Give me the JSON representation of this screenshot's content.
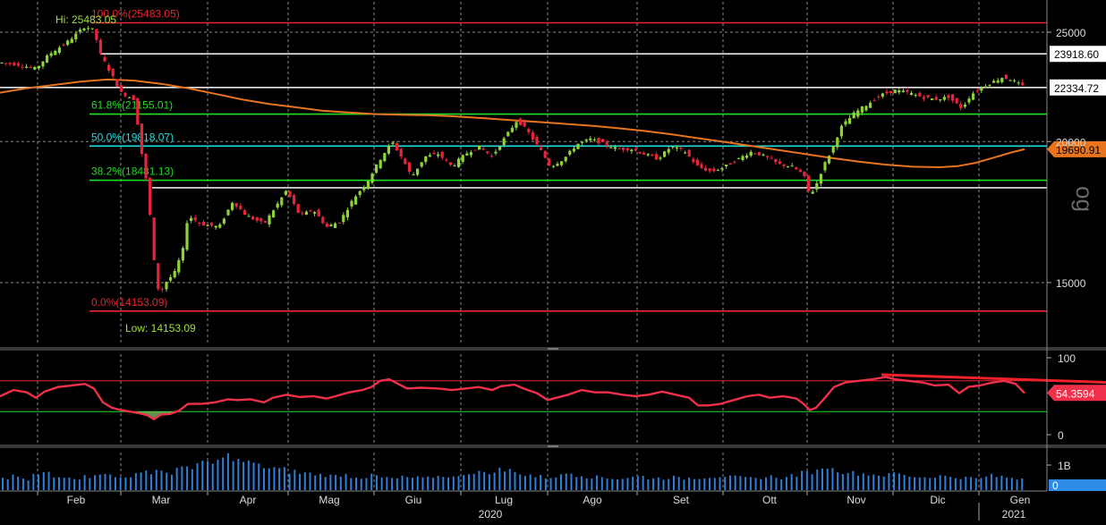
{
  "chart_data": [
    {
      "panel": "price",
      "type": "candlestick",
      "scale_note": "log",
      "scale": "log",
      "ylim": [
        13200,
        26600
      ],
      "x_months": [
        "Feb",
        "Mar",
        "Apr",
        "Mag",
        "Giu",
        "Lug",
        "Ago",
        "Set",
        "Ott",
        "Nov",
        "Dic",
        "Gen"
      ],
      "x_years": [
        "2020",
        "2021"
      ],
      "y_ticks": [
        "25000",
        "20000",
        "15000"
      ],
      "hi_label": "Hi: 25483.05",
      "low_label": "Low: 14153.09",
      "fib_levels": [
        {
          "label": "100.0%(25483.05)",
          "value": 25483.05,
          "color": "#e8242e"
        },
        {
          "label": "61.8%(21155.01)",
          "value": 21155.01,
          "color": "#22dd22"
        },
        {
          "label": "50.0%(19818.07)",
          "value": 19818.07,
          "color": "#22dddd"
        },
        {
          "label": "38.2%(18481.13)",
          "value": 18481.13,
          "color": "#22dd22"
        },
        {
          "label": "0.0%(14153.09)",
          "value": 14153.09,
          "color": "#e8242e"
        }
      ],
      "h_lines": [
        {
          "label": "23918.60",
          "value": 23918.6
        },
        {
          "label": "22334.72",
          "value": 22334.72
        },
        {
          "value": 18200
        }
      ],
      "ma_label": "19690.91",
      "ma_value": 19690.91,
      "ma_points": [
        [
          0,
          22100
        ],
        [
          30,
          22300
        ],
        [
          60,
          22450
        ],
        [
          90,
          22600
        ],
        [
          120,
          22700
        ],
        [
          150,
          22650
        ],
        [
          180,
          22500
        ],
        [
          210,
          22300
        ],
        [
          240,
          22050
        ],
        [
          270,
          21800
        ],
        [
          300,
          21600
        ],
        [
          330,
          21450
        ],
        [
          360,
          21300
        ],
        [
          390,
          21220
        ],
        [
          420,
          21150
        ],
        [
          450,
          21120
        ],
        [
          480,
          21100
        ],
        [
          510,
          21050
        ],
        [
          540,
          20980
        ],
        [
          570,
          20900
        ],
        [
          600,
          20820
        ],
        [
          630,
          20740
        ],
        [
          660,
          20660
        ],
        [
          690,
          20560
        ],
        [
          720,
          20440
        ],
        [
          750,
          20300
        ],
        [
          780,
          20140
        ],
        [
          810,
          19980
        ],
        [
          840,
          19820
        ],
        [
          870,
          19660
        ],
        [
          900,
          19500
        ],
        [
          930,
          19340
        ],
        [
          960,
          19200
        ],
        [
          990,
          19080
        ],
        [
          1020,
          19000
        ],
        [
          1050,
          18980
        ],
        [
          1070,
          19020
        ],
        [
          1090,
          19150
        ],
        [
          1110,
          19350
        ],
        [
          1130,
          19560
        ],
        [
          1145,
          19690
        ]
      ],
      "close_points": [
        [
          0,
          23500
        ],
        [
          20,
          23400
        ],
        [
          40,
          23200
        ],
        [
          55,
          23900
        ],
        [
          75,
          24500
        ],
        [
          95,
          25300
        ],
        [
          105,
          25100
        ],
        [
          112,
          23900
        ],
        [
          125,
          22900
        ],
        [
          135,
          22100
        ],
        [
          150,
          21800
        ],
        [
          158,
          19600
        ],
        [
          165,
          18100
        ],
        [
          172,
          15700
        ],
        [
          178,
          14600
        ],
        [
          185,
          15000
        ],
        [
          195,
          15300
        ],
        [
          205,
          16100
        ],
        [
          210,
          17200
        ],
        [
          225,
          16900
        ],
        [
          245,
          16800
        ],
        [
          260,
          17700
        ],
        [
          275,
          17200
        ],
        [
          295,
          16900
        ],
        [
          310,
          17600
        ],
        [
          320,
          18100
        ],
        [
          335,
          17200
        ],
        [
          350,
          17400
        ],
        [
          365,
          16800
        ],
        [
          380,
          17000
        ],
        [
          395,
          17800
        ],
        [
          410,
          18400
        ],
        [
          425,
          19300
        ],
        [
          438,
          20000
        ],
        [
          450,
          19300
        ],
        [
          460,
          18600
        ],
        [
          475,
          19400
        ],
        [
          490,
          19500
        ],
        [
          505,
          19000
        ],
        [
          520,
          19500
        ],
        [
          535,
          19800
        ],
        [
          550,
          19400
        ],
        [
          565,
          20200
        ],
        [
          578,
          20900
        ],
        [
          590,
          20400
        ],
        [
          605,
          19600
        ],
        [
          615,
          19000
        ],
        [
          630,
          19300
        ],
        [
          645,
          19900
        ],
        [
          660,
          20100
        ],
        [
          675,
          19900
        ],
        [
          690,
          19700
        ],
        [
          705,
          19700
        ],
        [
          720,
          19500
        ],
        [
          735,
          19300
        ],
        [
          750,
          19800
        ],
        [
          765,
          19600
        ],
        [
          780,
          19000
        ],
        [
          795,
          18800
        ],
        [
          810,
          19000
        ],
        [
          825,
          19300
        ],
        [
          840,
          19600
        ],
        [
          855,
          19400
        ],
        [
          870,
          19100
        ],
        [
          885,
          19000
        ],
        [
          898,
          18700
        ],
        [
          905,
          17900
        ],
        [
          912,
          18300
        ],
        [
          920,
          19000
        ],
        [
          930,
          19700
        ],
        [
          940,
          20600
        ],
        [
          955,
          21200
        ],
        [
          970,
          21600
        ],
        [
          985,
          22000
        ],
        [
          1000,
          22200
        ],
        [
          1015,
          22100
        ],
        [
          1030,
          21900
        ],
        [
          1045,
          21800
        ],
        [
          1060,
          21900
        ],
        [
          1075,
          21400
        ],
        [
          1085,
          22000
        ],
        [
          1095,
          22300
        ],
        [
          1110,
          22600
        ],
        [
          1120,
          22800
        ],
        [
          1130,
          22700
        ],
        [
          1145,
          22334
        ]
      ]
    },
    {
      "panel": "rsi",
      "type": "line",
      "ylim": [
        0,
        100
      ],
      "y_ticks": [
        "100",
        "0"
      ],
      "upper": 70,
      "lower": 30,
      "value_label": "54.3594",
      "trendline": [
        [
          985,
          78
        ],
        [
          1236,
          68
        ]
      ],
      "points": [
        [
          0,
          50
        ],
        [
          15,
          58
        ],
        [
          30,
          55
        ],
        [
          40,
          48
        ],
        [
          50,
          56
        ],
        [
          65,
          62
        ],
        [
          80,
          64
        ],
        [
          95,
          66
        ],
        [
          105,
          60
        ],
        [
          115,
          42
        ],
        [
          125,
          35
        ],
        [
          135,
          32
        ],
        [
          145,
          30
        ],
        [
          155,
          28
        ],
        [
          165,
          25
        ],
        [
          172,
          20
        ],
        [
          180,
          26
        ],
        [
          190,
          27
        ],
        [
          200,
          31
        ],
        [
          210,
          40
        ],
        [
          225,
          40
        ],
        [
          240,
          42
        ],
        [
          255,
          46
        ],
        [
          265,
          45
        ],
        [
          280,
          46
        ],
        [
          295,
          42
        ],
        [
          305,
          48
        ],
        [
          320,
          52
        ],
        [
          335,
          49
        ],
        [
          350,
          50
        ],
        [
          365,
          47
        ],
        [
          375,
          50
        ],
        [
          390,
          55
        ],
        [
          405,
          58
        ],
        [
          415,
          62
        ],
        [
          425,
          70
        ],
        [
          435,
          72
        ],
        [
          445,
          66
        ],
        [
          455,
          60
        ],
        [
          470,
          61
        ],
        [
          490,
          60
        ],
        [
          505,
          58
        ],
        [
          520,
          60
        ],
        [
          535,
          62
        ],
        [
          550,
          58
        ],
        [
          560,
          63
        ],
        [
          575,
          65
        ],
        [
          585,
          60
        ],
        [
          600,
          54
        ],
        [
          612,
          45
        ],
        [
          622,
          48
        ],
        [
          635,
          52
        ],
        [
          650,
          58
        ],
        [
          665,
          55
        ],
        [
          680,
          55
        ],
        [
          695,
          52
        ],
        [
          710,
          50
        ],
        [
          725,
          52
        ],
        [
          740,
          56
        ],
        [
          755,
          52
        ],
        [
          770,
          48
        ],
        [
          780,
          38
        ],
        [
          792,
          38
        ],
        [
          805,
          40
        ],
        [
          820,
          45
        ],
        [
          835,
          50
        ],
        [
          848,
          52
        ],
        [
          860,
          48
        ],
        [
          875,
          50
        ],
        [
          890,
          47
        ],
        [
          898,
          40
        ],
        [
          905,
          32
        ],
        [
          912,
          35
        ],
        [
          922,
          48
        ],
        [
          932,
          62
        ],
        [
          945,
          68
        ],
        [
          960,
          70
        ],
        [
          975,
          72
        ],
        [
          990,
          75
        ],
        [
          1000,
          72
        ],
        [
          1015,
          70
        ],
        [
          1030,
          68
        ],
        [
          1045,
          64
        ],
        [
          1060,
          65
        ],
        [
          1072,
          54
        ],
        [
          1082,
          62
        ],
        [
          1095,
          64
        ],
        [
          1110,
          68
        ],
        [
          1122,
          70
        ],
        [
          1135,
          66
        ],
        [
          1145,
          54
        ]
      ]
    },
    {
      "panel": "volume",
      "type": "bar",
      "y_ticks": [
        "1B",
        "0"
      ],
      "bar_color": "#2e7fd6",
      "bar_heights_note": "relative volume 0-1",
      "values": [
        0.35,
        0.4,
        0.3,
        0.45,
        0.5,
        0.38,
        0.42,
        0.36,
        0.4,
        0.5,
        0.44,
        0.38,
        0.42,
        0.46,
        0.55,
        0.6,
        0.5,
        0.62,
        0.7,
        0.8,
        0.75,
        0.9,
        1.0,
        0.85,
        0.8,
        0.7,
        0.65,
        0.6,
        0.55,
        0.5,
        0.48,
        0.45,
        0.42,
        0.46,
        0.4,
        0.38,
        0.42,
        0.36,
        0.34,
        0.38,
        0.36,
        0.35,
        0.4,
        0.42,
        0.38,
        0.5,
        0.55,
        0.48,
        0.6,
        0.58,
        0.52,
        0.45,
        0.4,
        0.38,
        0.42,
        0.5,
        0.45,
        0.4,
        0.38,
        0.36,
        0.34,
        0.38,
        0.4,
        0.36,
        0.35,
        0.38,
        0.34,
        0.36,
        0.38,
        0.4,
        0.42,
        0.38,
        0.36,
        0.34,
        0.38,
        0.4,
        0.36,
        0.45,
        0.5,
        0.55,
        0.7,
        0.6,
        0.55,
        0.5,
        0.48,
        0.46,
        0.44,
        0.5,
        0.42,
        0.4,
        0.38,
        0.42,
        0.4,
        0.38,
        0.36,
        0.34,
        0.42,
        0.4,
        0.38,
        0.35
      ]
    }
  ]
}
